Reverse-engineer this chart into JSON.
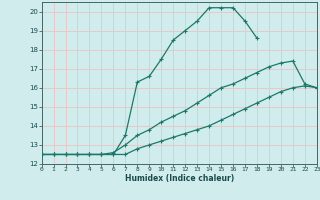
{
  "xlabel": "Humidex (Indice chaleur)",
  "bg_color": "#d0ecec",
  "grid_color": "#e8c8c8",
  "line_color": "#1a7a6a",
  "xlim": [
    0,
    23
  ],
  "ylim": [
    12,
    20.5
  ],
  "xticks": [
    0,
    1,
    2,
    3,
    4,
    5,
    6,
    7,
    8,
    9,
    10,
    11,
    12,
    13,
    14,
    15,
    16,
    17,
    18,
    19,
    20,
    21,
    22,
    23
  ],
  "yticks": [
    12,
    13,
    14,
    15,
    16,
    17,
    18,
    19,
    20
  ],
  "line1_x": [
    0,
    1,
    2,
    3,
    4,
    5,
    6,
    7,
    8,
    9,
    10,
    11,
    12,
    13,
    14,
    15,
    16,
    17,
    18
  ],
  "line1_y": [
    12.5,
    12.5,
    12.5,
    12.5,
    12.5,
    12.5,
    12.5,
    13.5,
    16.3,
    16.6,
    17.5,
    18.5,
    19.0,
    19.5,
    20.2,
    20.2,
    20.2,
    19.5,
    18.6
  ],
  "line2_x": [
    0,
    1,
    2,
    3,
    4,
    5,
    6,
    7,
    8,
    9,
    10,
    11,
    12,
    13,
    14,
    15,
    16,
    17,
    18,
    19,
    20,
    21,
    22,
    23
  ],
  "line2_y": [
    12.5,
    12.5,
    12.5,
    12.5,
    12.5,
    12.5,
    12.6,
    13.0,
    13.5,
    13.8,
    14.2,
    14.5,
    14.8,
    15.2,
    15.6,
    16.0,
    16.2,
    16.5,
    16.8,
    17.1,
    17.3,
    17.4,
    16.2,
    16.0
  ],
  "line3_x": [
    0,
    1,
    2,
    3,
    4,
    5,
    6,
    7,
    8,
    9,
    10,
    11,
    12,
    13,
    14,
    15,
    16,
    17,
    18,
    19,
    20,
    21,
    22,
    23
  ],
  "line3_y": [
    12.5,
    12.5,
    12.5,
    12.5,
    12.5,
    12.5,
    12.5,
    12.5,
    12.8,
    13.0,
    13.2,
    13.4,
    13.6,
    13.8,
    14.0,
    14.3,
    14.6,
    14.9,
    15.2,
    15.5,
    15.8,
    16.0,
    16.1,
    16.0
  ]
}
